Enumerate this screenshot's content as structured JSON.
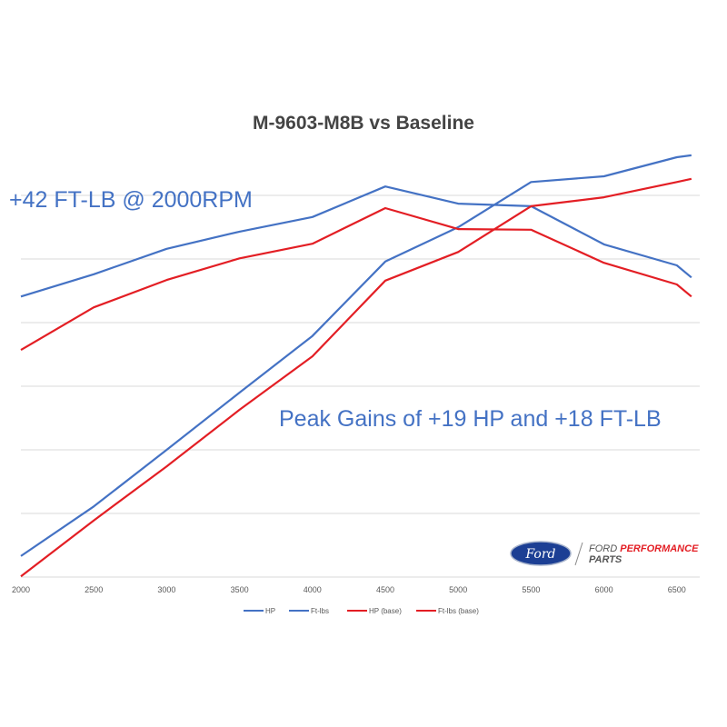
{
  "chart_data": {
    "type": "line",
    "title": "M-9603-M8B vs Baseline",
    "xlabel": "",
    "ylabel": "",
    "x": [
      2000,
      2500,
      3000,
      3500,
      4000,
      4500,
      5000,
      5500,
      6000,
      6500,
      6600
    ],
    "x_ticks": [
      "2000",
      "2500",
      "3000",
      "3500",
      "4000",
      "4500",
      "5000",
      "5500",
      "6000",
      "6500"
    ],
    "y_tick_labels_shown": false,
    "ylim": [
      0,
      6.7
    ],
    "grid": "horizontal",
    "legend_position": "bottom",
    "series": [
      {
        "name": "HP",
        "color": "#4472c4",
        "values": [
          0.33,
          1.11,
          2.0,
          2.9,
          3.79,
          4.96,
          5.5,
          6.21,
          6.3,
          6.6,
          6.63
        ]
      },
      {
        "name": "Ft-lbs",
        "color": "#4472c4",
        "values": [
          4.41,
          4.76,
          5.16,
          5.43,
          5.66,
          6.14,
          5.87,
          5.83,
          5.23,
          4.9,
          4.71
        ]
      },
      {
        "name": "HP (base)",
        "color": "#e31e24",
        "values": [
          0.01,
          0.89,
          1.74,
          2.63,
          3.47,
          4.66,
          5.11,
          5.83,
          5.97,
          6.21,
          6.26
        ]
      },
      {
        "name": "Ft-lbs (base)",
        "color": "#e31e24",
        "values": [
          3.57,
          4.24,
          4.67,
          5.01,
          5.24,
          5.8,
          5.47,
          5.46,
          4.94,
          4.6,
          4.41
        ]
      }
    ],
    "annotations": [
      "+42 FT-LB @ 2000RPM",
      "Peak Gains of +19 HP and +18 FT-LB"
    ]
  },
  "logo": {
    "brand": "Ford",
    "line1": "FORD",
    "line1b": "PERFORMANCE",
    "line2": "PARTS"
  }
}
